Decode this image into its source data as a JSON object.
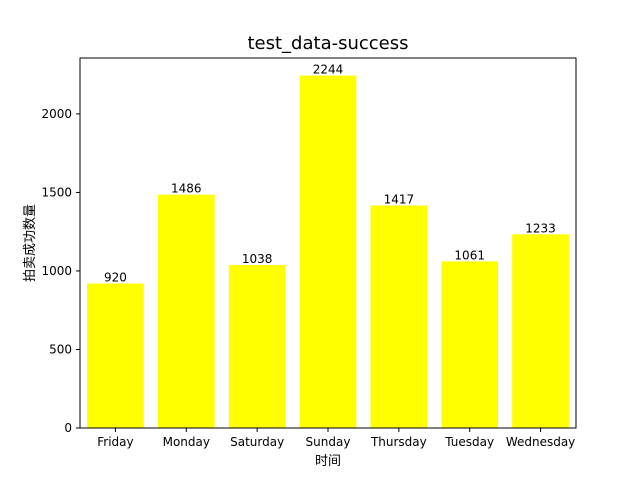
{
  "chart_data": {
    "type": "bar",
    "title": "test_data-success",
    "xlabel": "时间",
    "ylabel": "拍卖成功数量",
    "categories": [
      "Friday",
      "Monday",
      "Saturday",
      "Sunday",
      "Thursday",
      "Tuesday",
      "Wednesday"
    ],
    "values": [
      920,
      1486,
      1038,
      2244,
      1417,
      1061,
      1233
    ],
    "data_labels": [
      "920",
      "1486",
      "1038",
      "2244",
      "1417",
      "1061",
      "1233"
    ],
    "yticks": [
      0,
      500,
      1000,
      1500,
      2000
    ],
    "ytick_labels": [
      "0",
      "500",
      "1000",
      "1500",
      "2000"
    ],
    "ylim": [
      0,
      2356
    ],
    "bar_color": "#ffff00",
    "grid": false,
    "legend": "none"
  }
}
